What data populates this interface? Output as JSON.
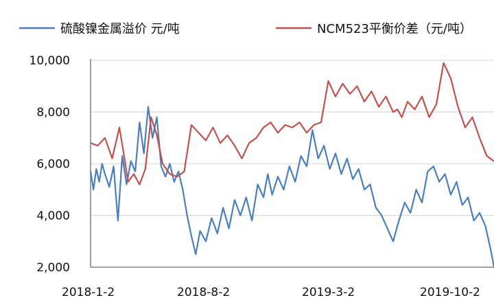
{
  "chart_data": {
    "type": "line",
    "title": "",
    "xlabel": "",
    "ylabel": "",
    "ylim": [
      2000,
      10000
    ],
    "yticks": [
      2000,
      4000,
      6000,
      8000,
      10000
    ],
    "ytick_labels": [
      "2,000",
      "4,000",
      "6,000",
      "8,000",
      "10,000"
    ],
    "xtick_labels": [
      "2018-1-2",
      "2018-8-2",
      "2019-3-2",
      "2019-10-2"
    ],
    "x_domain": [
      0,
      28
    ],
    "grid": true,
    "legend_position": "top",
    "series": [
      {
        "name": "硫酸镍金属溢价 元/吨",
        "color": "#4a7ebb",
        "x": [
          0,
          0.2,
          0.4,
          0.6,
          0.8,
          1.0,
          1.3,
          1.6,
          1.9,
          2.2,
          2.5,
          2.8,
          3.1,
          3.4,
          3.7,
          4.0,
          4.3,
          4.6,
          4.9,
          5.2,
          5.5,
          5.8,
          6.1,
          6.4,
          6.7,
          7.0,
          7.3,
          7.6,
          8.0,
          8.4,
          8.8,
          9.2,
          9.6,
          10.0,
          10.4,
          10.8,
          11.2,
          11.6,
          12.0,
          12.3,
          12.6,
          13.0,
          13.4,
          13.8,
          14.2,
          14.6,
          15.0,
          15.4,
          15.8,
          16.2,
          16.6,
          17.0,
          17.4,
          17.8,
          18.2,
          18.6,
          19.0,
          19.4,
          19.8,
          20.2,
          20.6,
          21.0,
          21.4,
          21.8,
          22.2,
          22.6,
          23.0,
          23.4,
          23.8,
          24.2,
          24.6,
          25.0,
          25.4,
          25.8,
          26.2,
          26.6,
          27.0,
          27.4,
          27.8,
          28.0
        ],
        "values": [
          5700,
          5000,
          5800,
          5300,
          6000,
          5600,
          5100,
          5900,
          3800,
          6300,
          5200,
          6100,
          5700,
          7600,
          6400,
          8200,
          7000,
          7800,
          5900,
          5500,
          6000,
          5300,
          5700,
          5000,
          4000,
          3200,
          2500,
          3400,
          3000,
          3900,
          3300,
          4300,
          3500,
          4600,
          4000,
          4700,
          3800,
          5200,
          4700,
          5600,
          4800,
          5500,
          5000,
          5900,
          5300,
          6300,
          5900,
          7300,
          6200,
          6700,
          5800,
          6400,
          5600,
          6200,
          5400,
          5800,
          5000,
          5200,
          4300,
          4000,
          3500,
          3000,
          3800,
          4500,
          4100,
          5000,
          4500,
          5700,
          5900,
          5300,
          5600,
          4800,
          5300,
          4400,
          4700,
          3800,
          4100,
          3600,
          2600,
          2000
        ]
      },
      {
        "name": "NCM523平衡价差（元/吨）",
        "color": "#c0504d",
        "x": [
          0,
          0.5,
          1.0,
          1.5,
          2.0,
          2.3,
          2.6,
          3.0,
          3.4,
          3.8,
          4.2,
          4.6,
          5.0,
          5.5,
          6.0,
          6.5,
          7.0,
          7.5,
          8.0,
          8.5,
          9.0,
          9.5,
          10.0,
          10.5,
          11.0,
          11.5,
          12.0,
          12.5,
          13.0,
          13.5,
          14.0,
          14.5,
          15.0,
          15.5,
          16.0,
          16.5,
          17.0,
          17.5,
          18.0,
          18.5,
          19.0,
          19.5,
          20.0,
          20.5,
          21.0,
          21.3,
          21.6,
          22.0,
          22.5,
          23.0,
          23.5,
          24.0,
          24.5,
          25.0,
          25.5,
          26.0,
          26.5,
          27.0,
          27.5,
          28.0
        ],
        "values": [
          6800,
          6700,
          7000,
          6200,
          7400,
          6400,
          5300,
          5600,
          5200,
          5800,
          7800,
          7100,
          6000,
          5600,
          5500,
          5700,
          7500,
          7200,
          6900,
          7400,
          6800,
          7100,
          6700,
          6200,
          6800,
          7000,
          7400,
          7600,
          7200,
          7500,
          7400,
          7600,
          7200,
          7500,
          7600,
          9200,
          8600,
          9100,
          8700,
          9000,
          8400,
          8800,
          8200,
          8600,
          8000,
          8100,
          7800,
          8400,
          8100,
          8600,
          7800,
          8300,
          9900,
          9300,
          8200,
          7400,
          7800,
          7000,
          6300,
          6100
        ]
      }
    ]
  }
}
